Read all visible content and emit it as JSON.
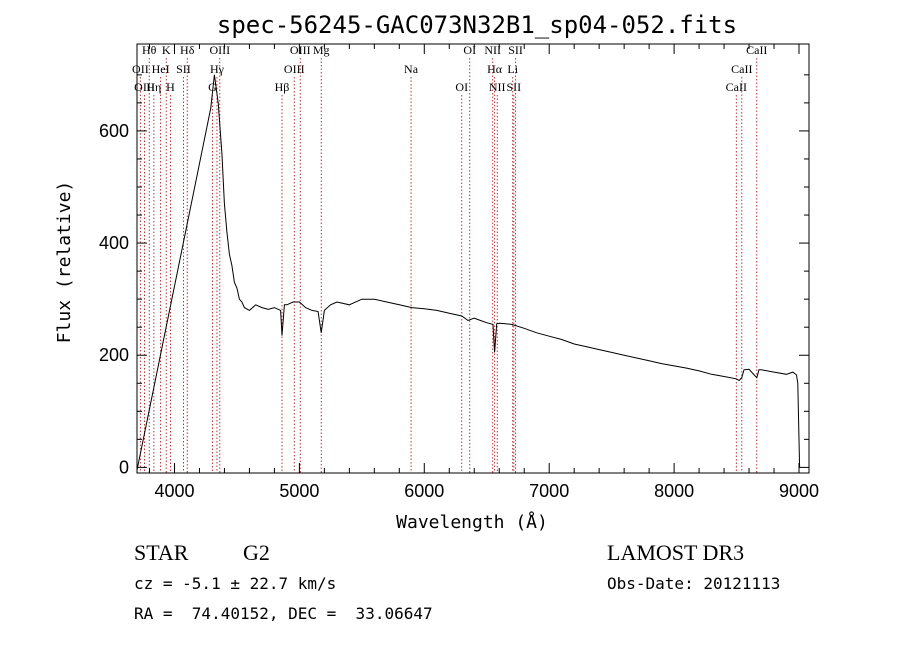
{
  "chart_data": {
    "type": "line",
    "title": "spec-56245-GAC073N32B1_sp04-052.fits",
    "xlabel": "Wavelength (Å)",
    "ylabel": "Flux (relative)",
    "xlim": [
      3700,
      9080
    ],
    "ylim": [
      -10,
      755
    ],
    "xticks": [
      4000,
      5000,
      6000,
      7000,
      8000,
      9000
    ],
    "yticks": [
      0,
      200,
      400,
      600
    ],
    "xtick_labels": [
      "4000",
      "5000",
      "6000",
      "7000",
      "8000",
      "9000"
    ],
    "ytick_labels": [
      "0",
      "200",
      "400",
      "600"
    ],
    "series": [
      {
        "name": "spectrum",
        "x": [
          3700,
          4290,
          4320,
          4350,
          4380,
          4400,
          4420,
          4440,
          4460,
          4480,
          4500,
          4520,
          4540,
          4560,
          4600,
          4650,
          4700,
          4750,
          4800,
          4850,
          4861,
          4880,
          4900,
          4950,
          5000,
          5050,
          5100,
          5150,
          5175,
          5200,
          5250,
          5300,
          5400,
          5500,
          5600,
          5700,
          5800,
          5900,
          6000,
          6100,
          6200,
          6300,
          6350,
          6400,
          6450,
          6500,
          6550,
          6563,
          6580,
          6600,
          6650,
          6700,
          6800,
          6900,
          7000,
          7100,
          7200,
          7300,
          7400,
          7500,
          7600,
          7700,
          7800,
          7900,
          8000,
          8100,
          8200,
          8300,
          8400,
          8498,
          8520,
          8542,
          8560,
          8600,
          8662,
          8680,
          8700,
          8800,
          8900,
          8950,
          8980,
          8990,
          9000,
          9005
        ],
        "y": [
          -5,
          640,
          700,
          650,
          560,
          470,
          420,
          380,
          360,
          330,
          320,
          300,
          295,
          285,
          280,
          290,
          285,
          282,
          285,
          280,
          235,
          290,
          290,
          295,
          295,
          285,
          280,
          278,
          240,
          280,
          290,
          295,
          290,
          300,
          300,
          295,
          290,
          285,
          283,
          280,
          275,
          270,
          262,
          266,
          262,
          258,
          255,
          205,
          256,
          257,
          256,
          255,
          248,
          240,
          234,
          228,
          220,
          215,
          210,
          205,
          200,
          195,
          190,
          185,
          181,
          177,
          172,
          166,
          162,
          158,
          155,
          160,
          174,
          175,
          160,
          174,
          174,
          170,
          166,
          170,
          165,
          150,
          50,
          0
        ]
      }
    ],
    "spectral_lines": [
      {
        "label": "Hθ",
        "wl": 3798
      },
      {
        "label": "OII",
        "wl": 3727
      },
      {
        "label": "OIII",
        "wl": 3760
      },
      {
        "label": "K",
        "wl": 3934
      },
      {
        "label": "HeI",
        "wl": 3889
      },
      {
        "label": "Hη",
        "wl": 3835
      },
      {
        "label": "Hδ",
        "wl": 4102
      },
      {
        "label": "SII",
        "wl": 4072
      },
      {
        "label": "H",
        "wl": 3968
      },
      {
        "label": "OIII",
        "wl": 4363
      },
      {
        "label": "Hγ",
        "wl": 4340
      },
      {
        "label": "G",
        "wl": 4304
      },
      {
        "label": "OIII",
        "wl": 5007
      },
      {
        "label": "OIII",
        "wl": 4959
      },
      {
        "label": "Hβ",
        "wl": 4861
      },
      {
        "label": "Mg",
        "wl": 5175
      },
      {
        "label": "Na",
        "wl": 5894
      },
      {
        "label": "OI",
        "wl": 6300
      },
      {
        "label": "OI",
        "wl": 6364
      },
      {
        "label": "Hα",
        "wl": 6563
      },
      {
        "label": "SII",
        "wl": 6717
      },
      {
        "label": "NII",
        "wl": 6548
      },
      {
        "label": "Li",
        "wl": 6708
      },
      {
        "label": "NII",
        "wl": 6584
      },
      {
        "label": "SII",
        "wl": 6731
      },
      {
        "label": "CaII",
        "wl": 8542
      },
      {
        "label": "CaII",
        "wl": 8498
      },
      {
        "label": "CaII",
        "wl": 8662
      }
    ]
  },
  "info": {
    "class": "STAR",
    "subclass": "G2",
    "survey": "LAMOST DR3",
    "cz": "cz = -5.1 ± 22.7 km/s",
    "obs_date": "Obs-Date: 20121113",
    "radec": "RA =  74.40152, DEC =  33.06647"
  },
  "colors": {
    "line": "#000000",
    "marker": "#b22222"
  }
}
